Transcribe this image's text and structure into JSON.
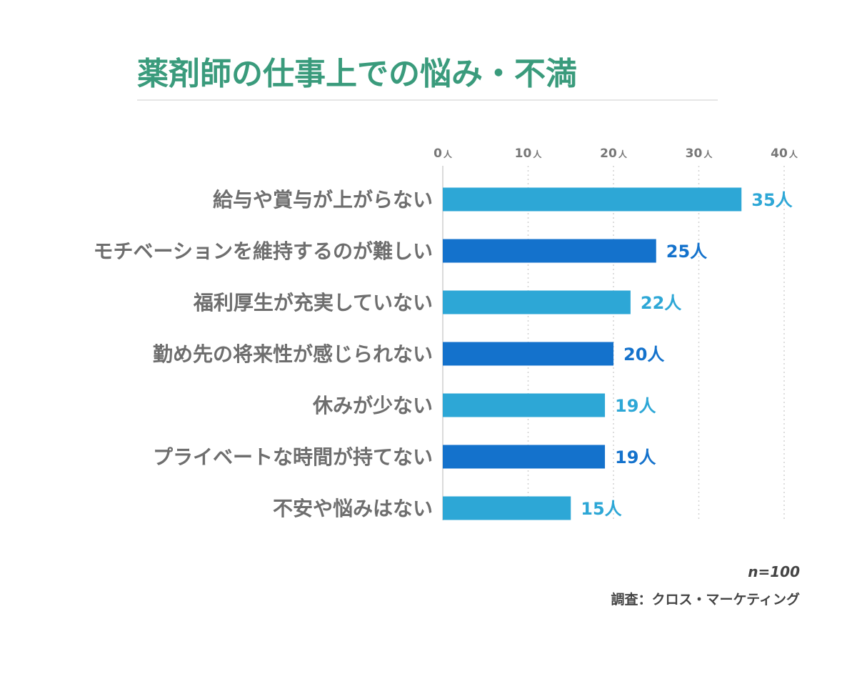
{
  "chart_data": {
    "type": "bar",
    "orientation": "horizontal",
    "title": "薬剤師の仕事上での悩み・不満",
    "categories": [
      "給与や賞与が上がらない",
      "モチベーションを維持するのが難しい",
      "福利厚生が充実していない",
      "勤め先の将来性が感じられない",
      "休みが少ない",
      "プライベートな時間が持てない",
      "不安や悩みはない"
    ],
    "values": [
      35,
      25,
      22,
      20,
      19,
      19,
      15
    ],
    "value_labels": [
      "35人",
      "25人",
      "22人",
      "20人",
      "19人",
      "19人",
      "15人"
    ],
    "xticks": [
      0,
      10,
      20,
      30,
      40
    ],
    "tick_number_labels": [
      "0",
      "10",
      "20",
      "30",
      "40"
    ],
    "tick_unit": "人",
    "xlim": [
      0,
      40
    ],
    "grid": "vertical dotted",
    "legend": "none",
    "colors": {
      "title": "#3a9b7c",
      "bar_light": "#2da7d6",
      "bar_dark": "#1472cc",
      "category_text": "#6e6e6e",
      "tick_text": "#777777",
      "title_rule": "#e6e6e6",
      "grid": "#d2d2d2"
    }
  },
  "footer": {
    "sample_size": "n=100",
    "source": "調査：クロス・マーケティング"
  }
}
